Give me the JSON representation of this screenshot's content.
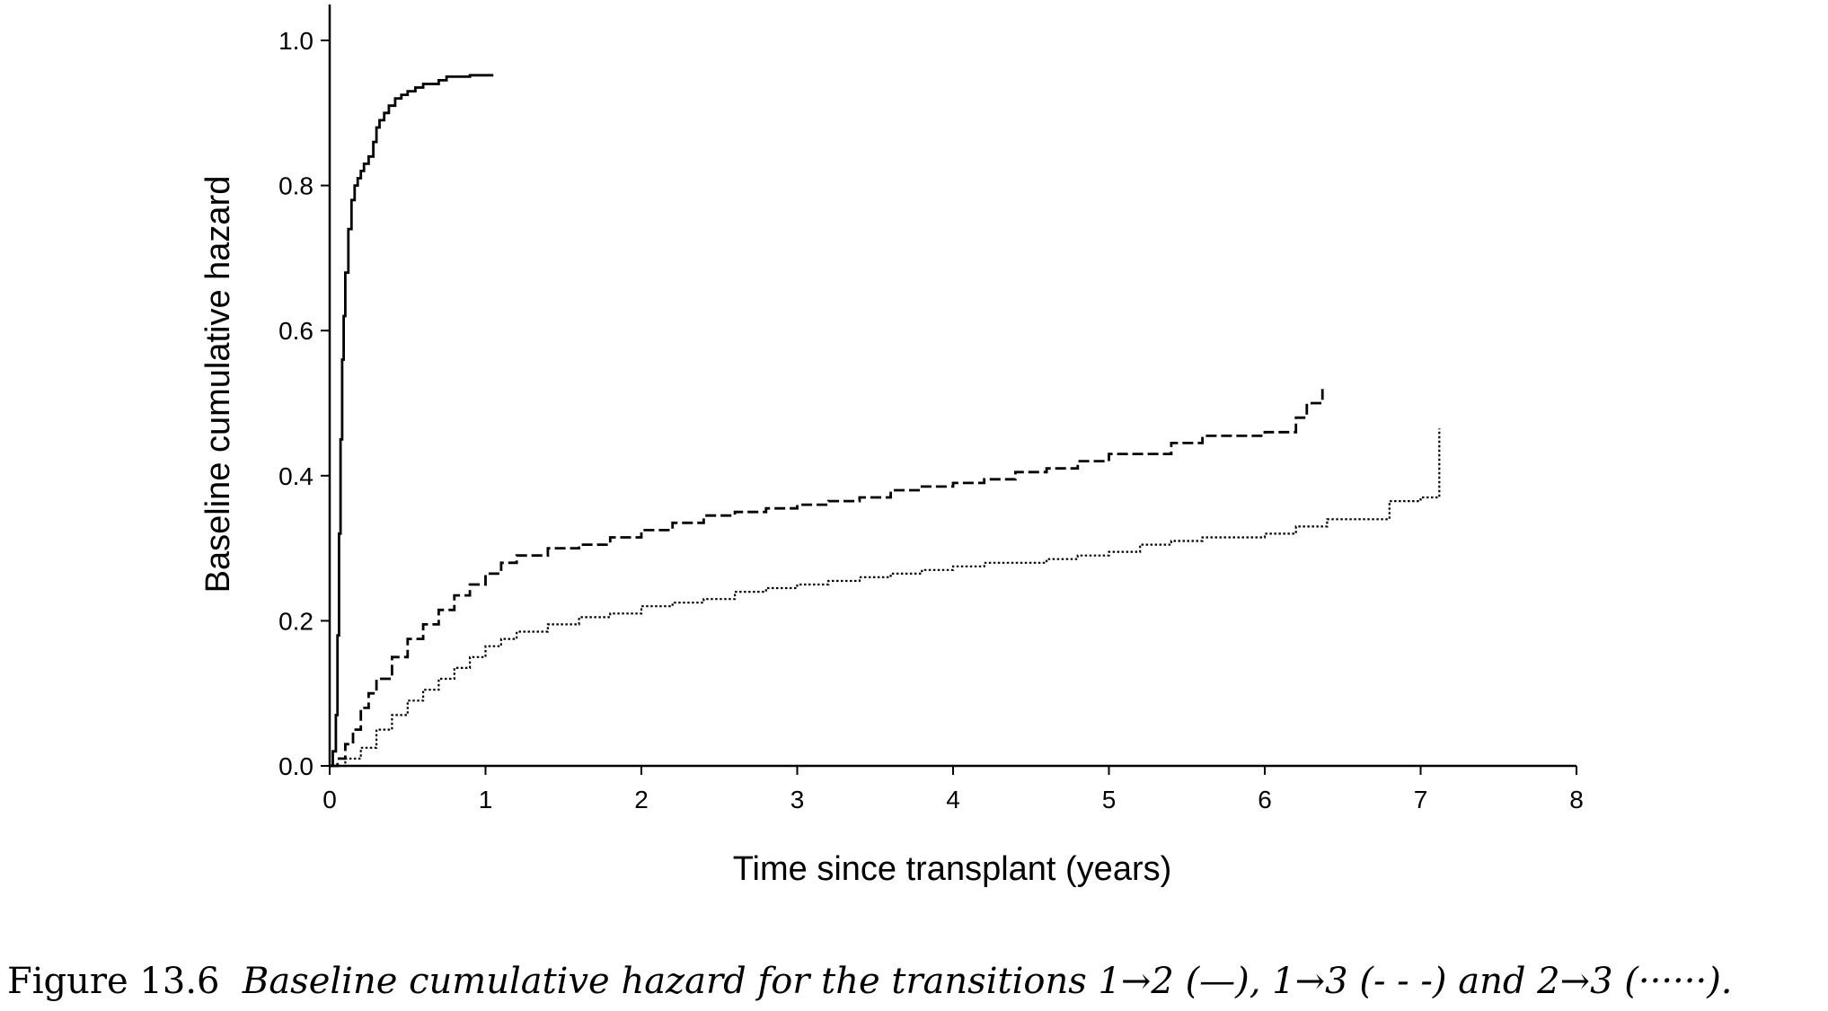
{
  "chart_data": {
    "type": "line",
    "xlabel": "Time since transplant (years)",
    "ylabel": "Baseline cumulative hazard",
    "xlim": [
      0,
      8
    ],
    "ylim": [
      0,
      1.0
    ],
    "x_ticks": [
      "0",
      "1",
      "2",
      "3",
      "4",
      "5",
      "6",
      "7",
      "8"
    ],
    "y_ticks": [
      "0.0",
      "0.2",
      "0.4",
      "0.6",
      "0.8",
      "1.0"
    ],
    "grid": false,
    "legend": "none",
    "series": [
      {
        "line_style": "solid",
        "step": true,
        "x": [
          0,
          0.02,
          0.04,
          0.05,
          0.06,
          0.07,
          0.08,
          0.09,
          0.1,
          0.12,
          0.14,
          0.16,
          0.18,
          0.2,
          0.22,
          0.25,
          0.28,
          0.3,
          0.32,
          0.35,
          0.38,
          0.42,
          0.46,
          0.5,
          0.55,
          0.6,
          0.65,
          0.7,
          0.75,
          0.8,
          0.9,
          1.0,
          1.05
        ],
        "y": [
          0,
          0.02,
          0.07,
          0.18,
          0.32,
          0.45,
          0.56,
          0.62,
          0.68,
          0.74,
          0.78,
          0.8,
          0.81,
          0.82,
          0.83,
          0.84,
          0.86,
          0.88,
          0.89,
          0.9,
          0.91,
          0.92,
          0.925,
          0.93,
          0.935,
          0.94,
          0.94,
          0.945,
          0.95,
          0.95,
          0.952,
          0.952,
          0.952
        ]
      },
      {
        "line_style": "dashed",
        "step": true,
        "x": [
          0,
          0.05,
          0.1,
          0.15,
          0.2,
          0.25,
          0.3,
          0.4,
          0.5,
          0.6,
          0.7,
          0.8,
          0.9,
          1.0,
          1.1,
          1.2,
          1.4,
          1.6,
          1.8,
          2.0,
          2.2,
          2.4,
          2.6,
          2.8,
          3.0,
          3.2,
          3.4,
          3.6,
          3.8,
          4.0,
          4.2,
          4.4,
          4.6,
          4.8,
          5.0,
          5.2,
          5.4,
          5.6,
          5.8,
          6.0,
          6.2,
          6.27,
          6.37
        ],
        "y": [
          0,
          0.01,
          0.03,
          0.05,
          0.08,
          0.1,
          0.12,
          0.15,
          0.175,
          0.195,
          0.215,
          0.235,
          0.25,
          0.265,
          0.28,
          0.29,
          0.3,
          0.305,
          0.315,
          0.325,
          0.335,
          0.345,
          0.35,
          0.355,
          0.36,
          0.365,
          0.37,
          0.38,
          0.385,
          0.39,
          0.395,
          0.405,
          0.41,
          0.42,
          0.43,
          0.43,
          0.445,
          0.455,
          0.455,
          0.46,
          0.48,
          0.5,
          0.525
        ]
      },
      {
        "line_style": "dotted",
        "step": true,
        "x": [
          0,
          0.1,
          0.2,
          0.3,
          0.4,
          0.5,
          0.6,
          0.7,
          0.8,
          0.9,
          1.0,
          1.1,
          1.2,
          1.4,
          1.6,
          1.8,
          2.0,
          2.2,
          2.4,
          2.6,
          2.8,
          3.0,
          3.2,
          3.4,
          3.6,
          3.8,
          4.0,
          4.2,
          4.4,
          4.6,
          4.8,
          5.0,
          5.2,
          5.4,
          5.6,
          5.8,
          6.0,
          6.2,
          6.4,
          6.6,
          6.8,
          7.0,
          7.1,
          7.12
        ],
        "y": [
          0,
          0.01,
          0.025,
          0.05,
          0.07,
          0.09,
          0.105,
          0.12,
          0.135,
          0.15,
          0.165,
          0.175,
          0.185,
          0.195,
          0.205,
          0.21,
          0.22,
          0.225,
          0.23,
          0.24,
          0.245,
          0.25,
          0.255,
          0.26,
          0.265,
          0.27,
          0.275,
          0.28,
          0.28,
          0.285,
          0.29,
          0.295,
          0.305,
          0.31,
          0.315,
          0.315,
          0.32,
          0.33,
          0.34,
          0.34,
          0.365,
          0.37,
          0.37,
          0.465
        ]
      }
    ]
  },
  "caption": {
    "label": "Figure 13.6",
    "text": "Baseline cumulative hazard for the transitions 1→2 (—), 1→3 (- - -) and 2→3 (······)."
  }
}
